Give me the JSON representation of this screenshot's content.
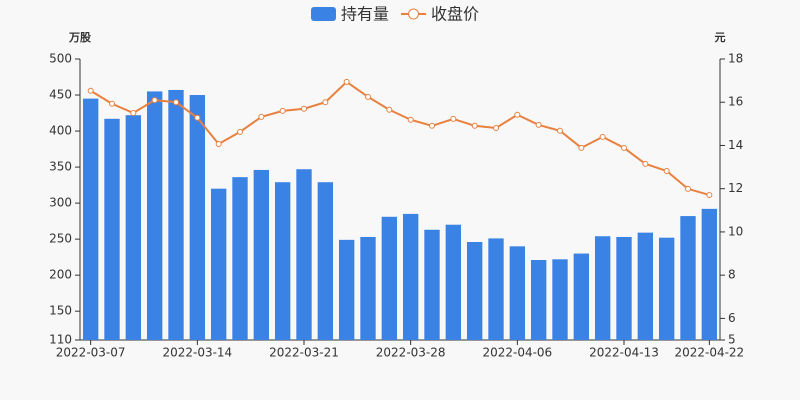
{
  "chart_data": {
    "type": "bar-line",
    "y_label": "万股",
    "y2_label": "元",
    "categories": [
      "2022-03-07",
      null,
      null,
      null,
      null,
      "2022-03-14",
      null,
      null,
      null,
      null,
      "2022-03-21",
      null,
      null,
      null,
      null,
      "2022-03-28",
      null,
      null,
      null,
      null,
      "2022-04-06",
      null,
      null,
      null,
      null,
      "2022-04-13",
      null,
      null,
      null,
      "2022-04-22"
    ],
    "ylim": [
      110,
      500
    ],
    "yticks": [
      110,
      150,
      200,
      250,
      300,
      350,
      400,
      450,
      500
    ],
    "y2lim": [
      5,
      18
    ],
    "y2ticks": [
      5,
      6,
      8,
      10,
      12,
      14,
      16,
      18
    ],
    "series": [
      {
        "name": "持有量",
        "type": "bar",
        "color": "#3a82e4",
        "values": [
          445,
          417,
          422,
          455,
          457,
          450,
          320,
          336,
          346,
          329,
          347,
          329,
          249,
          253,
          281,
          285,
          263,
          270,
          246,
          251,
          240,
          221,
          222,
          230,
          254,
          253,
          259,
          252,
          282,
          292
        ]
      },
      {
        "name": "收盘价",
        "type": "line",
        "axis": "y2",
        "color": "#e8803e",
        "values": [
          16.53,
          15.93,
          15.5,
          16.1,
          16.0,
          15.28,
          14.07,
          14.63,
          15.32,
          15.6,
          15.7,
          16.0,
          16.94,
          16.25,
          15.65,
          15.19,
          14.91,
          15.23,
          14.91,
          14.81,
          15.42,
          14.95,
          14.68,
          13.89,
          14.4,
          13.89,
          13.15,
          12.82,
          11.99,
          11.71
        ]
      }
    ]
  }
}
